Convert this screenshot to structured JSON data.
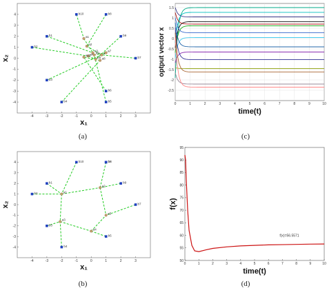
{
  "colors": {
    "edge": "#22cc22",
    "node": "#1f3fbf",
    "agent": "#c8a070",
    "fx_line": "#cc1111"
  },
  "chart_data": [
    {
      "panel": "(a)",
      "type": "scatter",
      "xlabel": "x₁",
      "ylabel": "x₂",
      "xlim": [
        -5,
        4
      ],
      "ylim": [
        -5,
        5
      ],
      "xticks": [
        "-4",
        "-3",
        "-2",
        "-1",
        "0",
        "1",
        "2",
        "3"
      ],
      "yticks": [
        "-4",
        "-3",
        "-2",
        "-1",
        "0",
        "1",
        "2",
        "3",
        "4"
      ],
      "targets": [
        {
          "label": "b1",
          "x": -3.0,
          "y": 2.0
        },
        {
          "label": "b2",
          "x": -4.0,
          "y": 1.0
        },
        {
          "label": "b3",
          "x": -3.0,
          "y": -2.0
        },
        {
          "label": "b4",
          "x": -2.0,
          "y": -4.0
        },
        {
          "label": "b5",
          "x": 1.0,
          "y": -4.0
        },
        {
          "label": "b6",
          "x": 1.0,
          "y": -3.0
        },
        {
          "label": "b7",
          "x": 3.0,
          "y": 0.0
        },
        {
          "label": "b8",
          "x": 1.0,
          "y": 4.0
        },
        {
          "label": "b9",
          "x": 2.0,
          "y": 2.0
        },
        {
          "label": "b10",
          "x": -1.0,
          "y": 4.0
        }
      ],
      "agents": [
        {
          "label": "a1",
          "x": -0.5,
          "y": 1.8
        },
        {
          "label": "a2",
          "x": -0.3,
          "y": 1.1
        },
        {
          "label": "a3",
          "x": 0.1,
          "y": 0.5
        },
        {
          "label": "a4",
          "x": -0.2,
          "y": 0.2
        },
        {
          "label": "a5",
          "x": 0.3,
          "y": -0.1
        },
        {
          "label": "a6",
          "x": 0.7,
          "y": 0.3
        },
        {
          "label": "a7",
          "x": 1.0,
          "y": 0.5
        },
        {
          "label": "a8",
          "x": 0.6,
          "y": -0.2
        },
        {
          "label": "a9",
          "x": 0.2,
          "y": 0.3
        },
        {
          "label": "a10",
          "x": -0.5,
          "y": 0.1
        }
      ],
      "edges": [
        [
          "b10",
          "a1"
        ],
        [
          "b8",
          "a2"
        ],
        [
          "b1",
          "a3"
        ],
        [
          "b2",
          "a4"
        ],
        [
          "b9",
          "a5"
        ],
        [
          "b7",
          "a6"
        ],
        [
          "b3",
          "a7"
        ],
        [
          "b4",
          "a8"
        ],
        [
          "b5",
          "a9"
        ],
        [
          "b6",
          "a10"
        ],
        [
          "a1",
          "a3"
        ],
        [
          "a2",
          "a6"
        ],
        [
          "a4",
          "a5"
        ],
        [
          "a7",
          "a9"
        ],
        [
          "a8",
          "a10"
        ]
      ]
    },
    {
      "panel": "(b)",
      "type": "scatter",
      "xlabel": "x₁",
      "ylabel": "x₂",
      "xlim": [
        -5,
        4
      ],
      "ylim": [
        -5,
        5
      ],
      "xticks": [
        "-4",
        "-3",
        "-2",
        "-1",
        "0",
        "1",
        "2",
        "3"
      ],
      "yticks": [
        "-4",
        "-3",
        "-2",
        "-1",
        "0",
        "1",
        "2",
        "3",
        "4"
      ],
      "targets": [
        {
          "label": "b1",
          "x": -3.0,
          "y": 2.0
        },
        {
          "label": "b2",
          "x": -4.0,
          "y": 1.0
        },
        {
          "label": "b3",
          "x": -3.0,
          "y": -2.0
        },
        {
          "label": "b4",
          "x": -2.0,
          "y": -4.0
        },
        {
          "label": "b5",
          "x": 1.0,
          "y": -3.0
        },
        {
          "label": "b6",
          "x": 1.0,
          "y": 4.0
        },
        {
          "label": "b7",
          "x": 3.0,
          "y": 0.0
        },
        {
          "label": "b8",
          "x": 1.0,
          "y": 4.0
        },
        {
          "label": "b9",
          "x": 2.0,
          "y": 2.0
        },
        {
          "label": "b10",
          "x": -1.0,
          "y": 4.0
        }
      ],
      "agents": [
        {
          "label": "a1",
          "x": -2.0,
          "y": 1.0
        },
        {
          "label": "a2",
          "x": 0.6,
          "y": 1.6
        },
        {
          "label": "a3",
          "x": -2.1,
          "y": -1.6
        },
        {
          "label": "a4",
          "x": 0.0,
          "y": -2.5
        },
        {
          "label": "a5",
          "x": 1.0,
          "y": -1.0
        }
      ],
      "edges": [
        [
          "b1",
          "a1"
        ],
        [
          "b2",
          "a1"
        ],
        [
          "b10",
          "a1"
        ],
        [
          "b6",
          "a2"
        ],
        [
          "b9",
          "a2"
        ],
        [
          "b3",
          "a3"
        ],
        [
          "b4",
          "a3"
        ],
        [
          "b5",
          "a4"
        ],
        [
          "b7",
          "a5"
        ],
        [
          "a1",
          "a3"
        ],
        [
          "a1",
          "a2"
        ],
        [
          "a2",
          "a5"
        ],
        [
          "a3",
          "a4"
        ],
        [
          "a4",
          "a5"
        ]
      ]
    },
    {
      "panel": "(c)",
      "type": "line",
      "xlabel": "time(t)",
      "ylabel": "optput vector x",
      "xlim": [
        0,
        10
      ],
      "ylim": [
        -3,
        1.7
      ],
      "xticks": [
        "0",
        "1",
        "2",
        "3",
        "4",
        "5",
        "6",
        "7",
        "8",
        "9",
        "10"
      ],
      "yticks": [
        "-2.5",
        "-2",
        "-1.5",
        "-1",
        "-0.5",
        "0",
        "0.5",
        "1",
        "1.5"
      ],
      "grid": true,
      "series": [
        {
          "final": 1.5,
          "color": "#00aa88"
        },
        {
          "final": 1.27,
          "color": "#00bfbf"
        },
        {
          "final": 1.05,
          "color": "#3a3a8a"
        },
        {
          "final": 0.82,
          "color": "#111111"
        },
        {
          "final": 0.7,
          "color": "#aa1111"
        },
        {
          "final": 0.62,
          "color": "#11aa11"
        },
        {
          "final": 0.28,
          "color": "#3366cc"
        },
        {
          "final": 0.05,
          "color": "#44ccee"
        },
        {
          "final": -0.4,
          "color": "#2266aa"
        },
        {
          "final": -0.65,
          "color": "#8a2bb0"
        },
        {
          "final": -1.02,
          "color": "#333399"
        },
        {
          "final": -1.45,
          "color": "#99aa22"
        },
        {
          "final": -1.62,
          "color": "#aa6633"
        },
        {
          "final": -2.2,
          "color": "#998899"
        },
        {
          "final": -2.35,
          "color": "#ff8888"
        }
      ]
    },
    {
      "panel": "(d)",
      "type": "line",
      "xlabel": "time(t)",
      "ylabel": "f(x)",
      "xlim": [
        0,
        10
      ],
      "ylim": [
        50,
        95
      ],
      "xticks": [
        "0",
        "1",
        "2",
        "3",
        "4",
        "5",
        "6",
        "7",
        "8",
        "9",
        "10"
      ],
      "yticks": [
        "50",
        "55",
        "60",
        "65",
        "70",
        "75",
        "80",
        "85",
        "90",
        "95"
      ],
      "grid": false,
      "annotation": "f(x)=56.5571",
      "series": [
        {
          "x": [
            0,
            0.05,
            0.1,
            0.2,
            0.3,
            0.5,
            0.7,
            1.0,
            1.5,
            2,
            3,
            4,
            5,
            6,
            7,
            8,
            9,
            10
          ],
          "y": [
            92,
            90,
            82,
            70,
            62,
            56,
            53.8,
            53.5,
            54.2,
            54.8,
            55.4,
            55.8,
            56.0,
            56.2,
            56.3,
            56.4,
            56.5,
            56.56
          ]
        }
      ]
    }
  ],
  "captions": {
    "a": "(a)",
    "b": "(b)",
    "c": "(c)",
    "d": "(d)"
  }
}
